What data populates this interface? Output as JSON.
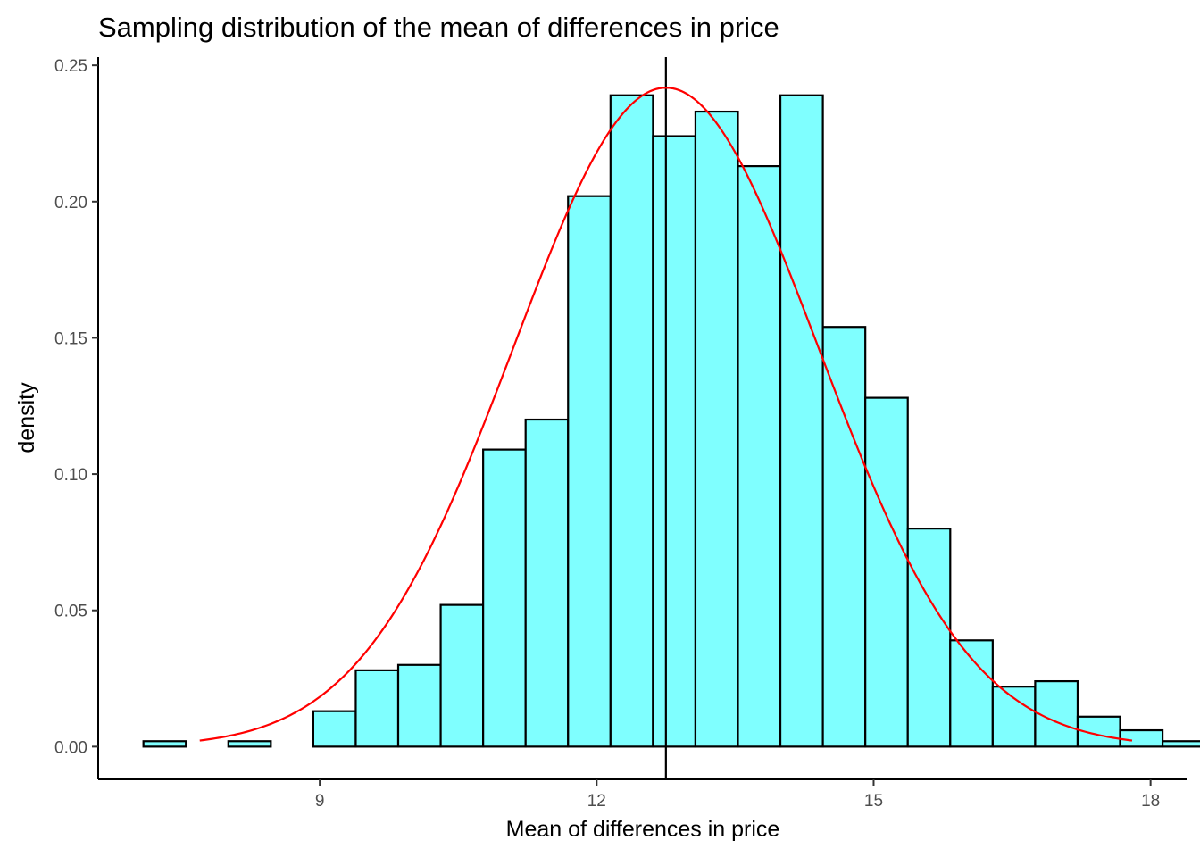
{
  "chart_data": {
    "type": "histogram",
    "title": "Sampling distribution of the mean of differences in price",
    "xlabel": "Mean of differences in price",
    "ylabel": "density",
    "xlim": [
      6.6,
      18.4
    ],
    "ylim": [
      -0.012,
      0.253
    ],
    "x_ticks": [
      9,
      12,
      15,
      18
    ],
    "x_tick_labels": [
      "9",
      "12",
      "15",
      "18"
    ],
    "y_ticks": [
      0.0,
      0.05,
      0.1,
      0.15,
      0.2,
      0.25
    ],
    "y_tick_labels": [
      "0.00",
      "0.05",
      "0.10",
      "0.15",
      "0.20",
      "0.25"
    ],
    "grid": false,
    "bin_width": 0.46,
    "bins": [
      {
        "x0": 7.09,
        "x1": 7.55,
        "density": 0.002
      },
      {
        "x0": 7.55,
        "x1": 8.01,
        "density": 0.0
      },
      {
        "x0": 8.01,
        "x1": 8.47,
        "density": 0.002
      },
      {
        "x0": 8.47,
        "x1": 8.93,
        "density": 0.0
      },
      {
        "x0": 8.93,
        "x1": 9.39,
        "density": 0.013
      },
      {
        "x0": 9.39,
        "x1": 9.85,
        "density": 0.028
      },
      {
        "x0": 9.85,
        "x1": 10.31,
        "density": 0.03
      },
      {
        "x0": 10.31,
        "x1": 10.77,
        "density": 0.052
      },
      {
        "x0": 10.77,
        "x1": 11.23,
        "density": 0.109
      },
      {
        "x0": 11.23,
        "x1": 11.69,
        "density": 0.12
      },
      {
        "x0": 11.69,
        "x1": 12.15,
        "density": 0.202
      },
      {
        "x0": 12.15,
        "x1": 12.61,
        "density": 0.239
      },
      {
        "x0": 12.61,
        "x1": 13.07,
        "density": 0.224
      },
      {
        "x0": 13.07,
        "x1": 13.53,
        "density": 0.233
      },
      {
        "x0": 13.53,
        "x1": 13.99,
        "density": 0.213
      },
      {
        "x0": 13.99,
        "x1": 14.45,
        "density": 0.239
      },
      {
        "x0": 14.45,
        "x1": 14.91,
        "density": 0.154
      },
      {
        "x0": 14.91,
        "x1": 15.37,
        "density": 0.128
      },
      {
        "x0": 15.37,
        "x1": 15.83,
        "density": 0.08
      },
      {
        "x0": 15.83,
        "x1": 16.29,
        "density": 0.039
      },
      {
        "x0": 16.29,
        "x1": 16.75,
        "density": 0.022
      },
      {
        "x0": 16.75,
        "x1": 17.21,
        "density": 0.024
      },
      {
        "x0": 17.21,
        "x1": 17.67,
        "density": 0.011
      },
      {
        "x0": 17.67,
        "x1": 18.13,
        "density": 0.006
      },
      {
        "x0": 18.13,
        "x1": 18.59,
        "density": 0.002
      }
    ],
    "vertical_line": {
      "x": 12.75
    },
    "normal_curve": {
      "mean": 12.75,
      "sd": 1.65,
      "x_range": [
        7.7,
        17.8
      ]
    },
    "colors": {
      "bar_fill": "#7FFFFF",
      "bar_stroke": "#000000",
      "curve": "#FF0000",
      "vline": "#000000",
      "axis": "#000000"
    }
  }
}
